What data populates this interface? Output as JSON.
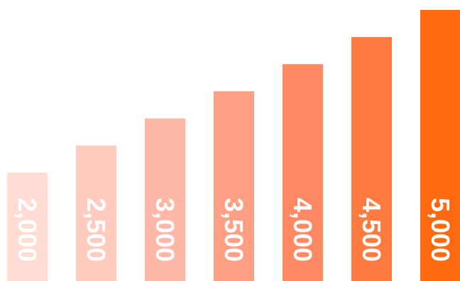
{
  "chart_data": {
    "type": "bar",
    "title": "",
    "xlabel": "",
    "ylabel": "",
    "ylim": [
      0,
      5000
    ],
    "grid": false,
    "legend": "none",
    "values": [
      2000,
      2500,
      3000,
      3500,
      4000,
      4500,
      5000
    ],
    "labels": [
      "2,000",
      "2,500",
      "3,000",
      "3,500",
      "4,000",
      "4,500",
      "5,000"
    ],
    "colors": [
      "#ffdcd4",
      "#ffcbbf",
      "#ffb8a8",
      "#ffa084",
      "#ff8963",
      "#ff7a3e",
      "#ff6a10"
    ]
  }
}
